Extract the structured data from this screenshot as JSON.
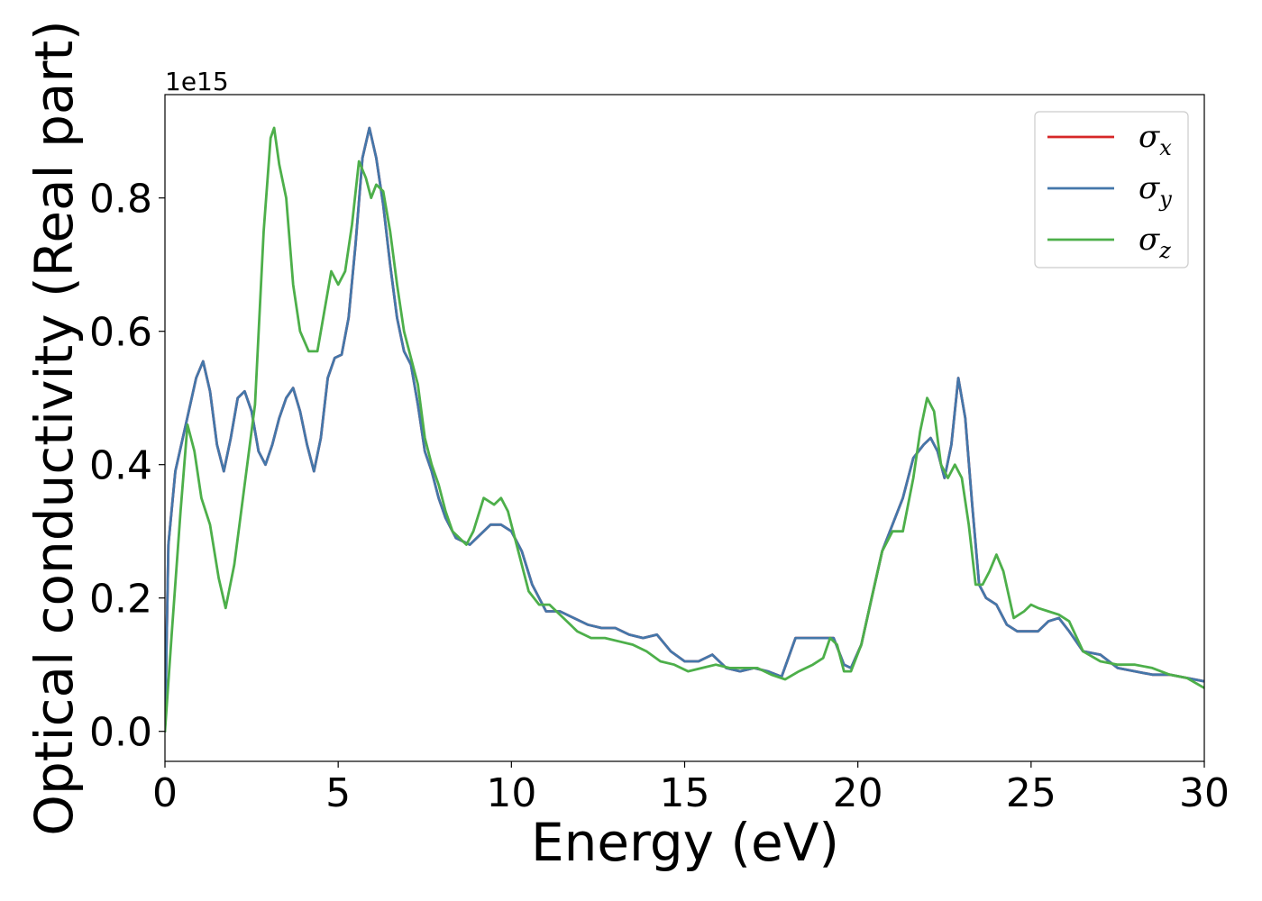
{
  "chart_data": {
    "type": "line",
    "xlabel": "Energy (eV)",
    "ylabel": "Optical conductivity (Real part)",
    "y_offset_text": "1e15",
    "xlim": [
      0,
      30
    ],
    "ylim": [
      -0.045,
      0.955
    ],
    "xticks": [
      0,
      5,
      10,
      15,
      20,
      25,
      30
    ],
    "xtick_labels": [
      "0",
      "5",
      "10",
      "15",
      "20",
      "25",
      "30"
    ],
    "yticks": [
      0.0,
      0.2,
      0.4,
      0.6,
      0.8
    ],
    "ytick_labels": [
      "0.0",
      "0.2",
      "0.4",
      "0.6",
      "0.8"
    ],
    "grid": false,
    "legend_position": "top-right",
    "series": [
      {
        "name": "σx",
        "symbol": "σ",
        "subscript": "x",
        "color": "#d62728",
        "x": [
          0,
          0.1,
          0.3,
          0.6,
          0.9,
          1.1,
          1.3,
          1.5,
          1.7,
          1.9,
          2.1,
          2.3,
          2.5,
          2.7,
          2.9,
          3.1,
          3.3,
          3.5,
          3.7,
          3.9,
          4.1,
          4.3,
          4.5,
          4.7,
          4.9,
          5.1,
          5.3,
          5.5,
          5.7,
          5.9,
          6.1,
          6.3,
          6.5,
          6.7,
          6.9,
          7.1,
          7.3,
          7.5,
          7.7,
          7.9,
          8.1,
          8.4,
          8.8,
          9.1,
          9.4,
          9.7,
          10.0,
          10.3,
          10.6,
          11.0,
          11.4,
          11.8,
          12.2,
          12.6,
          13.0,
          13.4,
          13.8,
          14.2,
          14.6,
          15.0,
          15.4,
          15.8,
          16.2,
          16.6,
          17.0,
          17.4,
          17.8,
          18.2,
          18.6,
          19.0,
          19.3,
          19.6,
          19.8,
          20.1,
          20.4,
          20.7,
          21.0,
          21.3,
          21.6,
          21.9,
          22.1,
          22.3,
          22.5,
          22.7,
          22.9,
          23.1,
          23.3,
          23.5,
          23.7,
          24.0,
          24.3,
          24.6,
          24.9,
          25.2,
          25.5,
          25.8,
          26.1,
          26.5,
          27.0,
          27.5,
          28.0,
          28.5,
          29.0,
          29.5,
          30.0
        ],
        "y": [
          0.0,
          0.28,
          0.39,
          0.46,
          0.53,
          0.555,
          0.51,
          0.43,
          0.39,
          0.44,
          0.5,
          0.51,
          0.48,
          0.42,
          0.4,
          0.43,
          0.47,
          0.5,
          0.515,
          0.48,
          0.43,
          0.39,
          0.44,
          0.53,
          0.56,
          0.565,
          0.62,
          0.73,
          0.86,
          0.905,
          0.86,
          0.79,
          0.7,
          0.62,
          0.57,
          0.55,
          0.49,
          0.42,
          0.39,
          0.35,
          0.32,
          0.29,
          0.28,
          0.295,
          0.31,
          0.31,
          0.3,
          0.27,
          0.22,
          0.18,
          0.18,
          0.17,
          0.16,
          0.155,
          0.155,
          0.145,
          0.14,
          0.145,
          0.12,
          0.105,
          0.105,
          0.115,
          0.095,
          0.09,
          0.095,
          0.09,
          0.082,
          0.14,
          0.14,
          0.14,
          0.14,
          0.1,
          0.095,
          0.13,
          0.2,
          0.27,
          0.31,
          0.35,
          0.41,
          0.43,
          0.44,
          0.42,
          0.38,
          0.43,
          0.53,
          0.47,
          0.34,
          0.22,
          0.2,
          0.19,
          0.16,
          0.15,
          0.15,
          0.15,
          0.165,
          0.17,
          0.15,
          0.12,
          0.115,
          0.095,
          0.09,
          0.085,
          0.085,
          0.08,
          0.075
        ]
      },
      {
        "name": "σy",
        "symbol": "σ",
        "subscript": "y",
        "color": "#4477aa",
        "x": [
          0,
          0.1,
          0.3,
          0.6,
          0.9,
          1.1,
          1.3,
          1.5,
          1.7,
          1.9,
          2.1,
          2.3,
          2.5,
          2.7,
          2.9,
          3.1,
          3.3,
          3.5,
          3.7,
          3.9,
          4.1,
          4.3,
          4.5,
          4.7,
          4.9,
          5.1,
          5.3,
          5.5,
          5.7,
          5.9,
          6.1,
          6.3,
          6.5,
          6.7,
          6.9,
          7.1,
          7.3,
          7.5,
          7.7,
          7.9,
          8.1,
          8.4,
          8.8,
          9.1,
          9.4,
          9.7,
          10.0,
          10.3,
          10.6,
          11.0,
          11.4,
          11.8,
          12.2,
          12.6,
          13.0,
          13.4,
          13.8,
          14.2,
          14.6,
          15.0,
          15.4,
          15.8,
          16.2,
          16.6,
          17.0,
          17.4,
          17.8,
          18.2,
          18.6,
          19.0,
          19.3,
          19.6,
          19.8,
          20.1,
          20.4,
          20.7,
          21.0,
          21.3,
          21.6,
          21.9,
          22.1,
          22.3,
          22.5,
          22.7,
          22.9,
          23.1,
          23.3,
          23.5,
          23.7,
          24.0,
          24.3,
          24.6,
          24.9,
          25.2,
          25.5,
          25.8,
          26.1,
          26.5,
          27.0,
          27.5,
          28.0,
          28.5,
          29.0,
          29.5,
          30.0
        ],
        "y": [
          0.0,
          0.28,
          0.39,
          0.46,
          0.53,
          0.555,
          0.51,
          0.43,
          0.39,
          0.44,
          0.5,
          0.51,
          0.48,
          0.42,
          0.4,
          0.43,
          0.47,
          0.5,
          0.515,
          0.48,
          0.43,
          0.39,
          0.44,
          0.53,
          0.56,
          0.565,
          0.62,
          0.73,
          0.86,
          0.905,
          0.86,
          0.79,
          0.7,
          0.62,
          0.57,
          0.55,
          0.49,
          0.42,
          0.39,
          0.35,
          0.32,
          0.29,
          0.28,
          0.295,
          0.31,
          0.31,
          0.3,
          0.27,
          0.22,
          0.18,
          0.18,
          0.17,
          0.16,
          0.155,
          0.155,
          0.145,
          0.14,
          0.145,
          0.12,
          0.105,
          0.105,
          0.115,
          0.095,
          0.09,
          0.095,
          0.09,
          0.082,
          0.14,
          0.14,
          0.14,
          0.14,
          0.1,
          0.095,
          0.13,
          0.2,
          0.27,
          0.31,
          0.35,
          0.41,
          0.43,
          0.44,
          0.42,
          0.38,
          0.43,
          0.53,
          0.47,
          0.34,
          0.22,
          0.2,
          0.19,
          0.16,
          0.15,
          0.15,
          0.15,
          0.165,
          0.17,
          0.15,
          0.12,
          0.115,
          0.095,
          0.09,
          0.085,
          0.085,
          0.08,
          0.075
        ]
      },
      {
        "name": "σz",
        "symbol": "σ",
        "subscript": "z",
        "color": "#4daf4a",
        "x": [
          0,
          0.2,
          0.45,
          0.65,
          0.85,
          1.05,
          1.3,
          1.55,
          1.75,
          2.0,
          2.3,
          2.6,
          2.85,
          3.05,
          3.15,
          3.3,
          3.5,
          3.7,
          3.9,
          4.15,
          4.4,
          4.6,
          4.8,
          5.0,
          5.2,
          5.4,
          5.6,
          5.8,
          5.95,
          6.1,
          6.3,
          6.5,
          6.7,
          6.9,
          7.1,
          7.3,
          7.5,
          7.7,
          7.9,
          8.1,
          8.3,
          8.5,
          8.7,
          8.9,
          9.2,
          9.5,
          9.7,
          9.9,
          10.2,
          10.5,
          10.8,
          11.1,
          11.5,
          11.9,
          12.3,
          12.7,
          13.1,
          13.5,
          13.9,
          14.3,
          14.7,
          15.1,
          15.5,
          15.9,
          16.3,
          16.7,
          17.1,
          17.5,
          17.9,
          18.3,
          18.7,
          19.0,
          19.2,
          19.4,
          19.6,
          19.8,
          20.1,
          20.4,
          20.7,
          21.0,
          21.3,
          21.6,
          21.8,
          22.0,
          22.2,
          22.4,
          22.6,
          22.8,
          23.0,
          23.2,
          23.4,
          23.6,
          23.8,
          24.0,
          24.2,
          24.5,
          24.8,
          25.0,
          25.2,
          25.5,
          25.8,
          26.1,
          26.5,
          27.0,
          27.5,
          28.0,
          28.5,
          29.0,
          29.5,
          30.0
        ],
        "y": [
          0.0,
          0.15,
          0.33,
          0.46,
          0.42,
          0.35,
          0.31,
          0.23,
          0.185,
          0.25,
          0.37,
          0.49,
          0.75,
          0.89,
          0.905,
          0.85,
          0.8,
          0.67,
          0.6,
          0.57,
          0.57,
          0.63,
          0.69,
          0.67,
          0.69,
          0.76,
          0.855,
          0.83,
          0.8,
          0.82,
          0.81,
          0.75,
          0.67,
          0.6,
          0.56,
          0.52,
          0.44,
          0.4,
          0.37,
          0.33,
          0.3,
          0.29,
          0.28,
          0.3,
          0.35,
          0.34,
          0.35,
          0.33,
          0.27,
          0.21,
          0.19,
          0.19,
          0.17,
          0.15,
          0.14,
          0.14,
          0.135,
          0.13,
          0.12,
          0.105,
          0.1,
          0.09,
          0.095,
          0.1,
          0.095,
          0.095,
          0.095,
          0.085,
          0.078,
          0.09,
          0.1,
          0.11,
          0.14,
          0.13,
          0.09,
          0.09,
          0.13,
          0.2,
          0.27,
          0.3,
          0.3,
          0.38,
          0.45,
          0.5,
          0.48,
          0.4,
          0.38,
          0.4,
          0.38,
          0.31,
          0.22,
          0.22,
          0.24,
          0.265,
          0.24,
          0.17,
          0.18,
          0.19,
          0.185,
          0.18,
          0.175,
          0.165,
          0.12,
          0.105,
          0.1,
          0.1,
          0.095,
          0.085,
          0.08,
          0.065
        ]
      }
    ]
  }
}
